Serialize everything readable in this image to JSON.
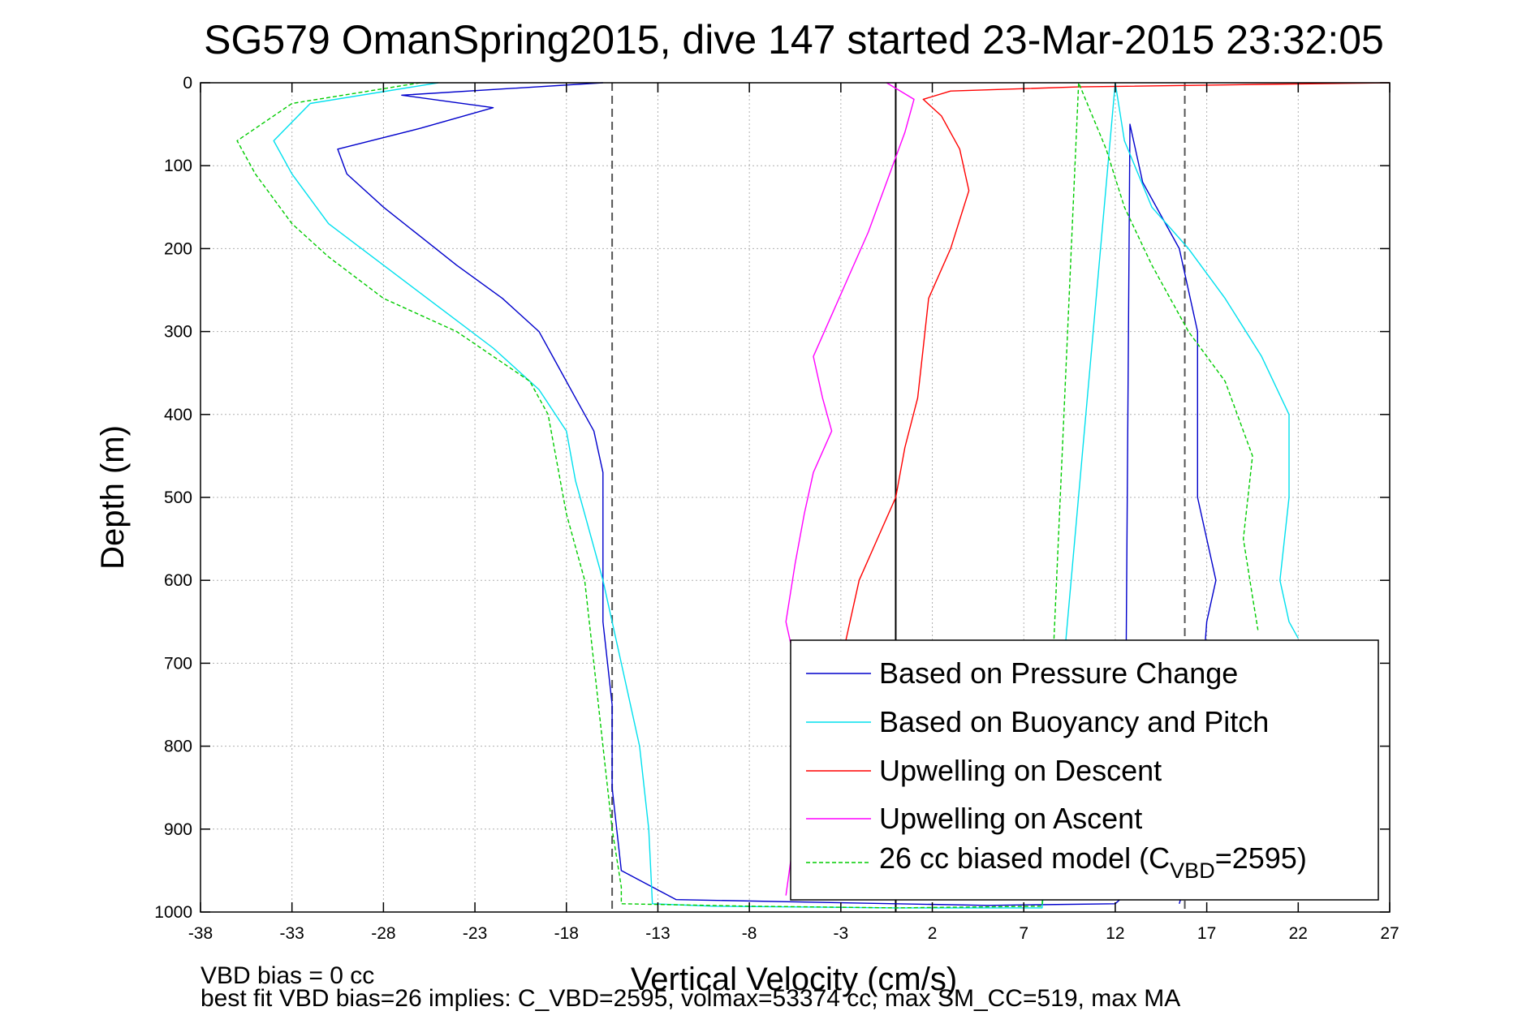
{
  "chart_data": {
    "type": "line",
    "title": "SG579 OmanSpring2015, dive 147 started 23-Mar-2015 23:32:05",
    "xlabel": "Vertical Velocity (cm/s)",
    "ylabel": "Depth (m)",
    "xlim": [
      -38,
      27
    ],
    "ylim": [
      0,
      1000
    ],
    "y_reversed": true,
    "grid": true,
    "legend_position": "bottom-right",
    "xticks": [
      "-38",
      "-33",
      "-28",
      "-23",
      "-18",
      "-13",
      "-8",
      "-3",
      "2",
      "7",
      "12",
      "17",
      "22",
      "27"
    ],
    "yticks": [
      "0",
      "100",
      "200",
      "300",
      "400",
      "500",
      "600",
      "700",
      "800",
      "900",
      "1000"
    ],
    "ytick_values": [
      0,
      100,
      200,
      300,
      400,
      500,
      600,
      700,
      800,
      900,
      1000
    ],
    "reference_lines": [
      {
        "x": -15.5,
        "style": "dashed",
        "color": "#555555"
      },
      {
        "x": 0,
        "style": "solid",
        "color": "#000000"
      },
      {
        "x": 15.8,
        "style": "dashed",
        "color": "#555555"
      }
    ],
    "series": [
      {
        "name": "Based on Pressure Change",
        "color": "#0000cc",
        "style": "solid",
        "x": [
          -16,
          -27,
          -22,
          -26,
          -30.5,
          -30,
          -28,
          -26,
          -24,
          -21.5,
          -19.5,
          -18.5,
          -17.5,
          -16.5,
          -16,
          -16,
          -16,
          -15.5,
          -15.5,
          -15,
          -12,
          0,
          5,
          12,
          12.5,
          12.8,
          13.5,
          15.5,
          16.5,
          16.5,
          16.5,
          17,
          17.5,
          17,
          16.5,
          16,
          15.5
        ],
        "y": [
          0,
          15,
          30,
          55,
          80,
          110,
          150,
          185,
          220,
          260,
          300,
          340,
          380,
          420,
          470,
          550,
          650,
          750,
          850,
          950,
          985,
          990,
          992,
          990,
          980,
          50,
          120,
          200,
          300,
          400,
          500,
          550,
          600,
          650,
          800,
          950,
          990
        ]
      },
      {
        "name": "Based on Buoyancy and Pitch",
        "color": "#00e0ee",
        "style": "solid",
        "x": [
          -25,
          -32,
          -34,
          -33,
          -31,
          -28,
          -25,
          -22,
          -19.5,
          -18,
          -17.5,
          -17,
          -16,
          -15,
          -14,
          -13.5,
          -13.3,
          -10,
          0,
          8,
          12,
          12.5,
          14,
          16,
          18,
          20,
          21.5,
          21.5,
          21,
          21.5,
          22
        ],
        "y": [
          0,
          25,
          70,
          110,
          170,
          220,
          270,
          320,
          370,
          420,
          480,
          520,
          600,
          700,
          800,
          900,
          990,
          993,
          995,
          995,
          0,
          70,
          150,
          200,
          260,
          330,
          400,
          500,
          600,
          650,
          670
        ]
      },
      {
        "name": "Upwelling on Descent",
        "color": "#ff0000",
        "style": "solid",
        "x": [
          27,
          20,
          10,
          3,
          1.5,
          2.5,
          3.5,
          4,
          3,
          1.8,
          1.5,
          1.2,
          0.5,
          0,
          -1,
          -2,
          -3,
          -3
        ],
        "y": [
          0,
          2,
          5,
          10,
          20,
          40,
          80,
          130,
          200,
          260,
          320,
          380,
          440,
          500,
          550,
          600,
          700,
          980
        ]
      },
      {
        "name": "Upwelling on Ascent",
        "color": "#ff00ff",
        "style": "solid",
        "x": [
          -0.5,
          1,
          0.5,
          -0.5,
          -1.5,
          -2.5,
          -3.5,
          -4.5,
          -4,
          -3.5,
          -4.5,
          -5,
          -5.5,
          -6,
          -5.5,
          -5.5,
          -5.5,
          -6
        ],
        "y": [
          0,
          20,
          60,
          120,
          180,
          230,
          280,
          330,
          380,
          420,
          470,
          520,
          580,
          650,
          700,
          800,
          900,
          980
        ]
      },
      {
        "name": "26 cc biased model (C_VBD=2595)",
        "color": "#00cc00",
        "style": "dashed",
        "x": [
          -26,
          -33,
          -36,
          -35,
          -33,
          -31,
          -28,
          -24,
          -20,
          -19,
          -18.5,
          -18,
          -17,
          -16.5,
          -16,
          -15.5,
          -15,
          -15,
          -8,
          0,
          8,
          10,
          11.5,
          12.5,
          14,
          16,
          18,
          19.5,
          19,
          19.5,
          19.8
        ],
        "y": [
          0,
          25,
          70,
          110,
          170,
          210,
          260,
          300,
          360,
          400,
          460,
          520,
          600,
          700,
          800,
          900,
          970,
          990,
          993,
          995,
          993,
          0,
          80,
          150,
          220,
          300,
          360,
          450,
          550,
          620,
          660
        ]
      }
    ],
    "legend": [
      {
        "label": "Based on Pressure Change",
        "series": 0
      },
      {
        "label": "Based on Buoyancy and Pitch",
        "series": 1
      },
      {
        "label": "Upwelling on Descent",
        "series": 2
      },
      {
        "label": "Upwelling on Ascent",
        "series": 3
      },
      {
        "label_prefix": "26 cc biased model (C",
        "label_sub": "VBD",
        "label_suffix": "=2595)",
        "series": 4
      }
    ],
    "footer": {
      "line1": "VBD bias = 0 cc",
      "line2": "best fit VBD bias=26 implies: C_VBD=2595, volmax=53374 cc, max SM_CC=519, max MA"
    }
  }
}
